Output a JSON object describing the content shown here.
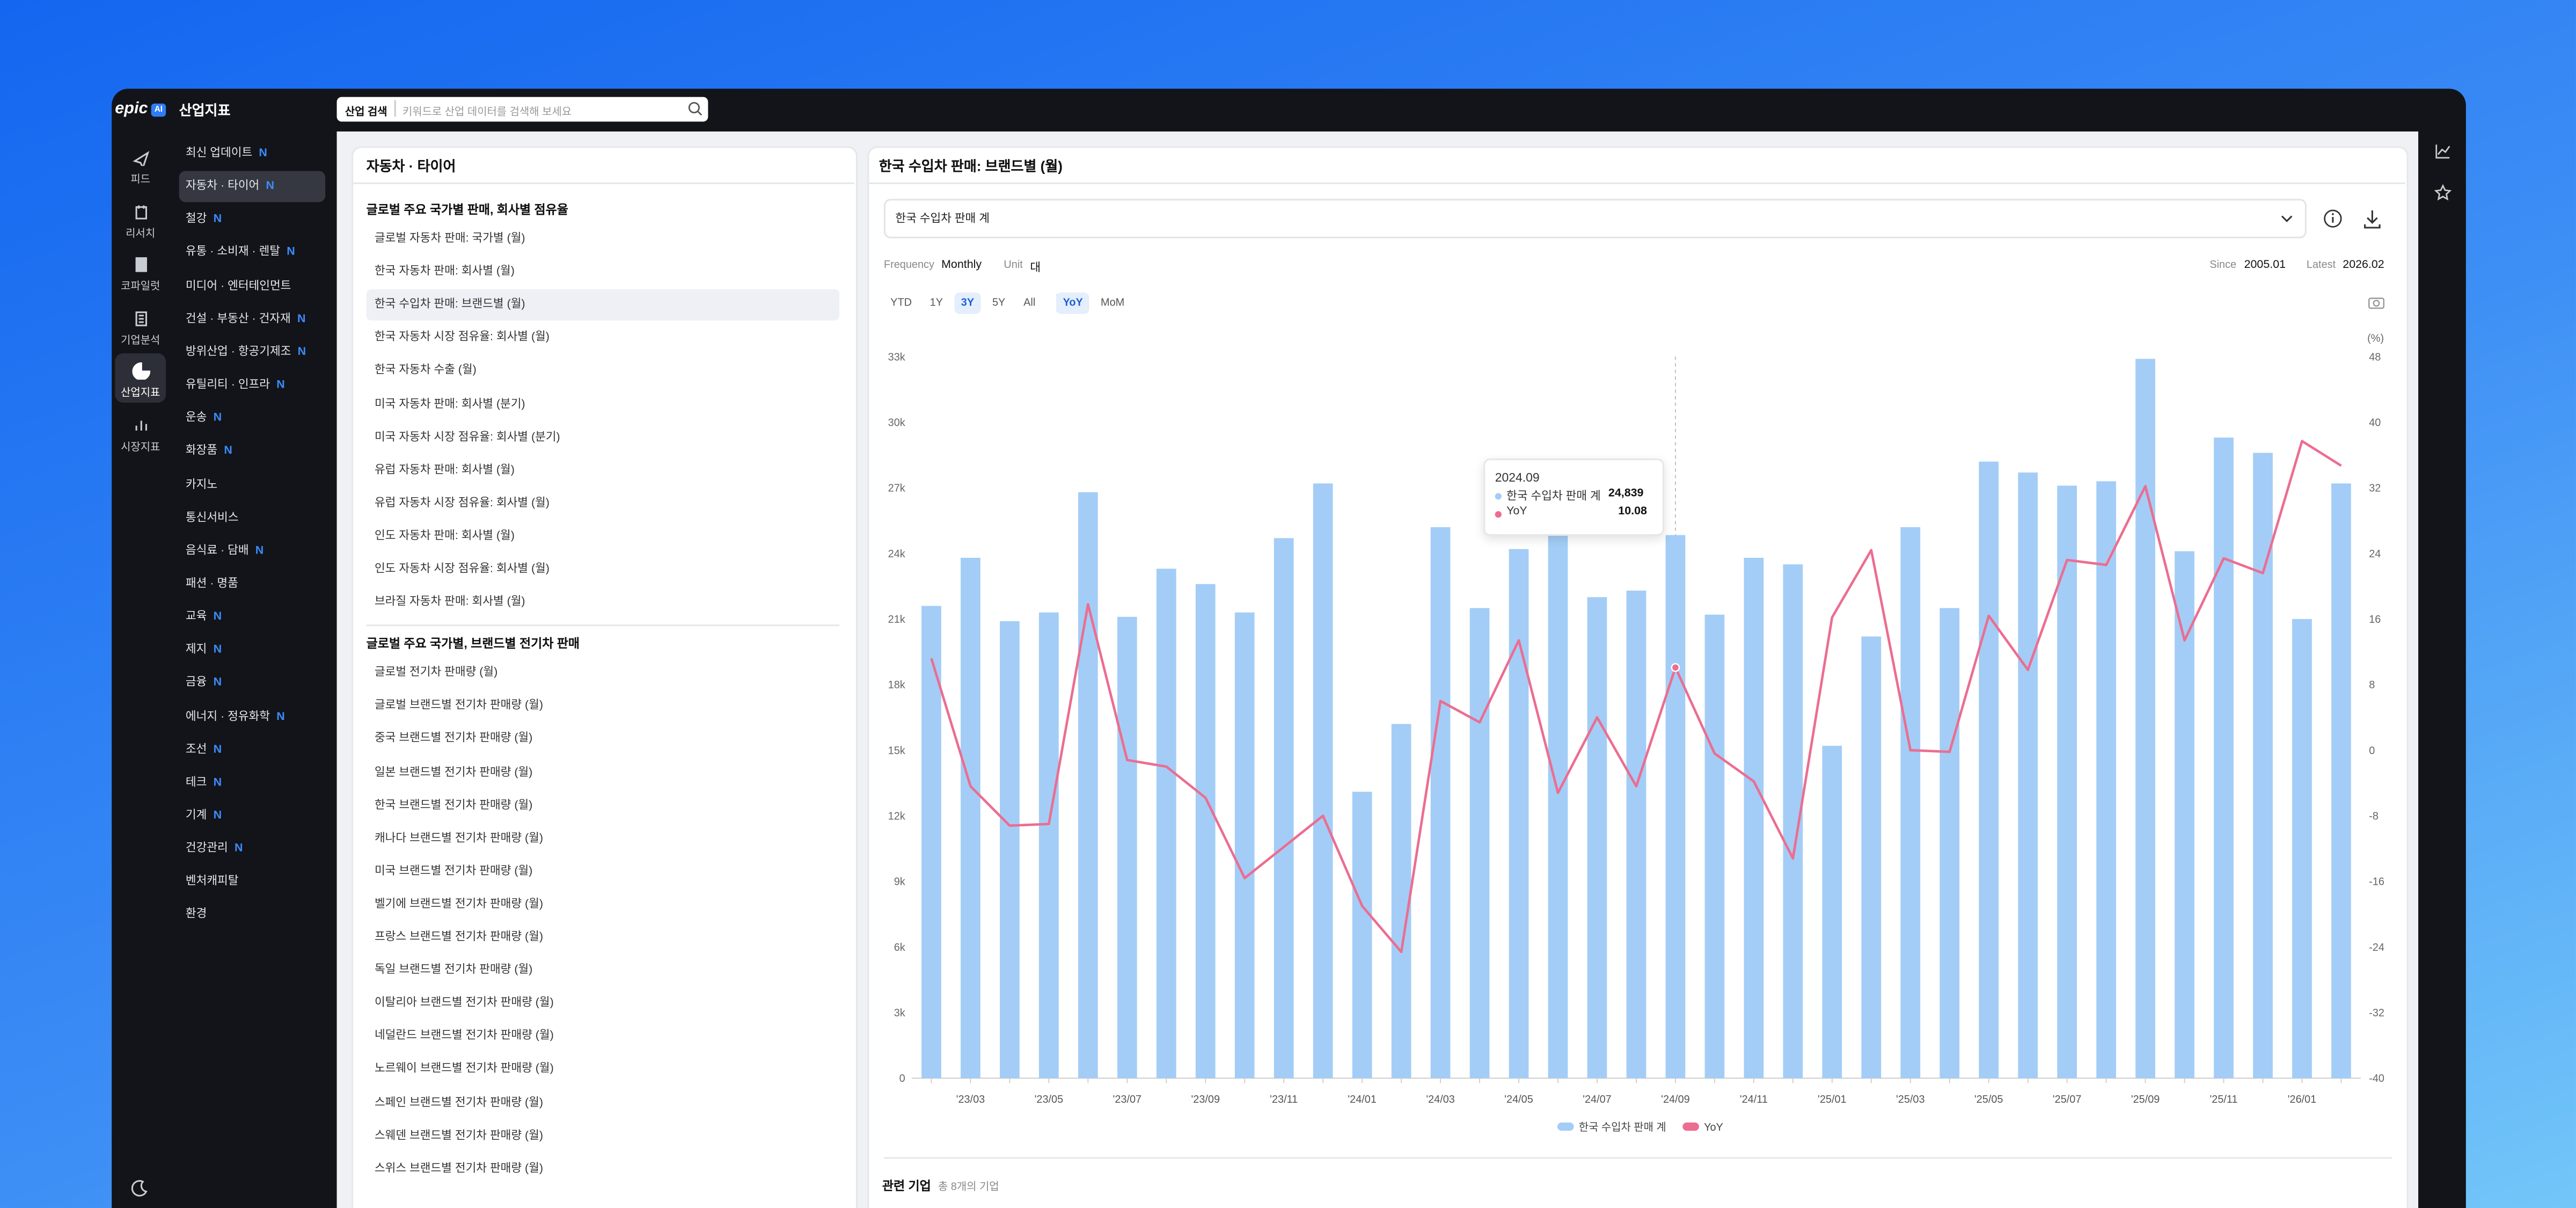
{
  "app": {
    "logo": "epic",
    "logo_badge": "AI",
    "title": "산업지표",
    "search_label": "산업 검색",
    "search_placeholder": "키워드로 산업 데이터를 검색해 보세요"
  },
  "rail": [
    {
      "label": "피드"
    },
    {
      "label": "리서치"
    },
    {
      "label": "코파일럿"
    },
    {
      "label": "기업분석"
    },
    {
      "label": "산업지표",
      "active": true
    },
    {
      "label": "시장지표"
    }
  ],
  "nav": [
    {
      "label": "최신 업데이트",
      "badge": "N"
    },
    {
      "label": "자동차 · 타이어",
      "badge": "N",
      "active": true
    },
    {
      "label": "철강",
      "badge": "N"
    },
    {
      "label": "유통 · 소비재 · 렌탈",
      "badge": "N"
    },
    {
      "label": "미디어 · 엔터테인먼트"
    },
    {
      "label": "건설 · 부동산 · 건자재",
      "badge": "N"
    },
    {
      "label": "방위산업 · 항공기제조",
      "badge": "N"
    },
    {
      "label": "유틸리티 · 인프라",
      "badge": "N"
    },
    {
      "label": "운송",
      "badge": "N"
    },
    {
      "label": "화장품",
      "badge": "N"
    },
    {
      "label": "카지노"
    },
    {
      "label": "통신서비스"
    },
    {
      "label": "음식료 · 담배",
      "badge": "N"
    },
    {
      "label": "패션 · 명품"
    },
    {
      "label": "교육",
      "badge": "N"
    },
    {
      "label": "제지",
      "badge": "N"
    },
    {
      "label": "금융",
      "badge": "N"
    },
    {
      "label": "에너지 · 정유화학",
      "badge": "N"
    },
    {
      "label": "조선",
      "badge": "N"
    },
    {
      "label": "테크",
      "badge": "N"
    },
    {
      "label": "기계",
      "badge": "N"
    },
    {
      "label": "건강관리",
      "badge": "N"
    },
    {
      "label": "벤처캐피탈"
    },
    {
      "label": "환경"
    }
  ],
  "list": {
    "title": "자동차 · 타이어",
    "groups": [
      {
        "title": "글로벌 주요 국가별 판매, 회사별 점유율",
        "items": [
          {
            "label": "글로벌 자동차 판매: 국가별 (월)"
          },
          {
            "label": "한국 자동차 판매: 회사별 (월)"
          },
          {
            "label": "한국 수입차 판매: 브랜드별 (월)",
            "selected": true
          },
          {
            "label": "한국 자동차 시장 점유율: 회사별 (월)"
          },
          {
            "label": "한국 자동차 수출 (월)"
          },
          {
            "label": "미국 자동차 판매: 회사별 (분기)"
          },
          {
            "label": "미국 자동차 시장 점유율: 회사별 (분기)"
          },
          {
            "label": "유럽 자동차 판매: 회사별 (월)"
          },
          {
            "label": "유럽 자동차 시장 점유율: 회사별 (월)"
          },
          {
            "label": "인도 자동차 판매: 회사별 (월)"
          },
          {
            "label": "인도 자동차 시장 점유율: 회사별 (월)"
          },
          {
            "label": "브라질 자동차 판매: 회사별 (월)"
          }
        ]
      },
      {
        "title": "글로벌 주요 국가별, 브랜드별 전기차 판매",
        "items": [
          {
            "label": "글로벌 전기차 판매량 (월)"
          },
          {
            "label": "글로벌 브랜드별 전기차 판매량 (월)"
          },
          {
            "label": "중국 브랜드별 전기차 판매량 (월)"
          },
          {
            "label": "일본 브랜드별 전기차 판매량 (월)"
          },
          {
            "label": "한국 브랜드별 전기차 판매량 (월)"
          },
          {
            "label": "캐나다 브랜드별 전기차 판매량 (월)"
          },
          {
            "label": "미국 브랜드별 전기차 판매량 (월)"
          },
          {
            "label": "벨기에 브랜드별 전기차 판매량 (월)"
          },
          {
            "label": "프랑스 브랜드별 전기차 판매량 (월)"
          },
          {
            "label": "독일 브랜드별 전기차 판매량 (월)"
          },
          {
            "label": "이탈리아 브랜드별 전기차 판매량 (월)"
          },
          {
            "label": "네덜란드 브랜드별 전기차 판매량 (월)"
          },
          {
            "label": "노르웨이 브랜드별 전기차 판매량 (월)"
          },
          {
            "label": "스페인 브랜드별 전기차 판매량 (월)"
          },
          {
            "label": "스웨덴 브랜드별 전기차 판매량 (월)"
          },
          {
            "label": "스위스 브랜드별 전기차 판매량 (월)"
          }
        ]
      }
    ]
  },
  "detail": {
    "title": "한국 수입차 판매: 브랜드별 (월)",
    "selector": "한국 수입차 판매 계",
    "frequency_label": "Frequency",
    "frequency": "Monthly",
    "unit_label": "Unit",
    "unit": "대",
    "since_label": "Since",
    "since": "2005.01",
    "latest_label": "Latest",
    "latest": "2026.02",
    "ranges": [
      "YTD",
      "1Y",
      "3Y",
      "5Y",
      "All"
    ],
    "range_active": 2,
    "modes": [
      "YoY",
      "MoM"
    ],
    "mode_active": 0,
    "related_title": "관련 기업",
    "related_count": "총 8개의 기업"
  },
  "chart_data": {
    "type": "bar_line",
    "categories": [
      null,
      "'23/03",
      null,
      "'23/05",
      null,
      "'23/07",
      null,
      "'23/09",
      null,
      "'23/11",
      null,
      "'24/01",
      null,
      "'24/03",
      null,
      "'24/05",
      null,
      "'24/07",
      null,
      "'24/09",
      null,
      "'24/11",
      null,
      "'25/01",
      null,
      "'25/03",
      null,
      "'25/05",
      null,
      "'25/07",
      null,
      "'25/09",
      null,
      "'25/11",
      null,
      "'26/01",
      null
    ],
    "series": [
      {
        "name": "한국 수입차 판매 계",
        "type": "bar",
        "color": "#a3cdf6",
        "values": [
          21600,
          23800,
          20900,
          21300,
          26800,
          21100,
          23300,
          22600,
          21300,
          24700,
          27200,
          13100,
          16200,
          25200,
          21500,
          24200,
          25100,
          22000,
          22300,
          24839,
          21200,
          23800,
          23500,
          15200,
          20200,
          25200,
          21500,
          28200,
          27700,
          27100,
          27300,
          32900,
          24100,
          29300,
          28600,
          21000,
          27200
        ]
      },
      {
        "name": "YoY",
        "type": "line",
        "axis": "y2",
        "color": "#ec6d90",
        "values": [
          11.2,
          -4.4,
          -9.2,
          -9.0,
          17.8,
          -1.2,
          -2.0,
          -5.8,
          -15.6,
          -11.8,
          -8.0,
          -19.0,
          -24.6,
          6.0,
          3.4,
          13.4,
          -5.2,
          4.0,
          -4.4,
          10.08,
          -0.4,
          -3.8,
          -13.2,
          16.2,
          24.4,
          0,
          -0.2,
          16.4,
          9.8,
          23.2,
          22.6,
          32.2,
          13.4,
          23.4,
          21.6,
          37.7,
          34.7
        ]
      }
    ],
    "ylim": [
      0,
      33000
    ],
    "yticks": [
      0,
      {
        "value": 3000,
        "label": "3k"
      },
      {
        "value": 6000,
        "label": "6k"
      },
      {
        "value": 9000,
        "label": "9k"
      },
      {
        "value": 12000,
        "label": "12k"
      },
      {
        "value": 15000,
        "label": "15k"
      },
      {
        "value": 18000,
        "label": "18k"
      },
      {
        "value": 21000,
        "label": "21k"
      },
      {
        "value": 24000,
        "label": "24k"
      },
      {
        "value": 27000,
        "label": "27k"
      },
      {
        "value": 30000,
        "label": "30k"
      },
      {
        "value": 33000,
        "label": "33k"
      }
    ],
    "y2label": "(%)",
    "y2lim": [
      -40,
      48
    ],
    "y2ticks": [
      -40,
      -32,
      -24,
      -16,
      -8,
      0,
      8,
      16,
      24,
      32,
      40,
      48
    ],
    "tooltip": {
      "date": "2024.09",
      "label": "24,839"
    }
  }
}
